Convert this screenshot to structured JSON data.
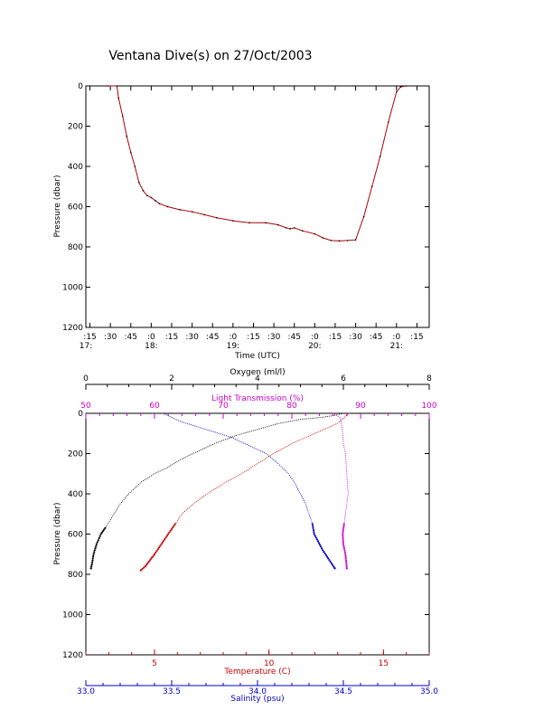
{
  "title": "Ventana Dive(s) on 27/Oct/2003",
  "chart_data": [
    {
      "type": "line",
      "title": "Ventana Dive(s) on 27/Oct/2003",
      "xlabel": "Time (UTC)",
      "ylabel": "Pressure (dbar)",
      "xlim": [
        17.2,
        21.4
      ],
      "ylim": [
        1200,
        0
      ],
      "x_ticks": [
        {
          "v": 17.25,
          "l": ":15"
        },
        {
          "v": 17.5,
          "l": ":30"
        },
        {
          "v": 17.75,
          "l": ":45"
        },
        {
          "v": 18.0,
          "l": ":0"
        },
        {
          "v": 18.25,
          "l": ":15"
        },
        {
          "v": 18.5,
          "l": ":30"
        },
        {
          "v": 18.75,
          "l": ":45"
        },
        {
          "v": 19.0,
          "l": ":0"
        },
        {
          "v": 19.25,
          "l": ":15"
        },
        {
          "v": 19.5,
          "l": ":30"
        },
        {
          "v": 19.75,
          "l": ":45"
        },
        {
          "v": 20.0,
          "l": ":0"
        },
        {
          "v": 20.25,
          "l": ":15"
        },
        {
          "v": 20.5,
          "l": ":30"
        },
        {
          "v": 20.75,
          "l": ":45"
        },
        {
          "v": 21.0,
          "l": ":0"
        },
        {
          "v": 21.25,
          "l": ":15"
        }
      ],
      "hour_labels": [
        {
          "v": 17.0,
          "l": "17:"
        },
        {
          "v": 18.0,
          "l": "18:"
        },
        {
          "v": 19.0,
          "l": "19:"
        },
        {
          "v": 20.0,
          "l": "20:"
        },
        {
          "v": 21.0,
          "l": "21:"
        }
      ],
      "y_ticks": [
        0,
        200,
        400,
        600,
        800,
        1000,
        1200
      ],
      "color": "#b00000",
      "series": [
        {
          "x": [
            17.47,
            17.58,
            17.6,
            17.65,
            17.7,
            17.75,
            17.8,
            17.85,
            17.9,
            17.95,
            18.0,
            18.05,
            18.1,
            18.2,
            18.35,
            18.5,
            18.65,
            18.8,
            19.0,
            19.2,
            19.4,
            19.55,
            19.65,
            19.7,
            19.75,
            19.85,
            20.0,
            20.1,
            20.2,
            20.3,
            20.4,
            20.5,
            20.6,
            20.7,
            20.8,
            20.9,
            21.0,
            21.05,
            21.12
          ],
          "y": [
            0,
            0,
            60,
            150,
            250,
            330,
            400,
            480,
            520,
            545,
            555,
            570,
            585,
            600,
            615,
            625,
            640,
            655,
            670,
            680,
            680,
            690,
            705,
            710,
            705,
            720,
            735,
            755,
            768,
            770,
            768,
            765,
            650,
            500,
            350,
            180,
            30,
            5,
            0
          ]
        }
      ]
    },
    {
      "type": "scatter",
      "ylabel": "Pressure (dbar)",
      "ylim": [
        1200,
        0
      ],
      "y_ticks": [
        0,
        200,
        400,
        600,
        800,
        1000,
        1200
      ],
      "axes": {
        "oxygen": {
          "label": "Oxygen (ml/l)",
          "range": [
            0,
            8
          ],
          "ticks": [
            0,
            2,
            4,
            6,
            8
          ],
          "color": "#000000",
          "position": "top"
        },
        "light": {
          "label": "Light Transmission (%)",
          "range": [
            50,
            100
          ],
          "ticks": [
            50,
            60,
            70,
            80,
            90,
            100
          ],
          "color": "#cc00cc",
          "position": "top"
        },
        "temperature": {
          "label": "Temperature (C)",
          "range": [
            2,
            17
          ],
          "ticks": [
            5,
            10,
            15
          ],
          "color": "#cc0000",
          "position": "bottom"
        },
        "salinity": {
          "label": "Salinity (psu)",
          "range": [
            33.0,
            35.0
          ],
          "ticks": [
            "33.0",
            "33.5",
            "34.0",
            "34.5",
            "35.0"
          ],
          "color": "#0000cc",
          "position": "bottom"
        }
      },
      "series": [
        {
          "name": "Oxygen (ml/l)",
          "axis": "oxygen",
          "color": "#000000",
          "x": [
            6.0,
            5.8,
            5.5,
            5.0,
            4.5,
            4.0,
            3.5,
            3.0,
            2.6,
            2.2,
            1.9,
            1.6,
            1.3,
            1.0,
            0.8,
            0.6,
            0.45,
            0.35,
            0.25,
            0.18,
            0.15,
            0.12
          ],
          "y": [
            0,
            10,
            20,
            30,
            50,
            80,
            110,
            150,
            190,
            230,
            270,
            300,
            340,
            400,
            450,
            520,
            570,
            600,
            650,
            700,
            740,
            770
          ]
        },
        {
          "name": "Light Transmission (%)",
          "axis": "light",
          "color": "#cc00cc",
          "x": [
            86.0,
            87.0,
            87.2,
            87.4,
            87.5,
            87.8,
            87.9,
            88.0,
            88.1,
            88.2,
            88.0,
            87.8,
            87.6,
            87.4,
            87.5,
            87.8,
            88.0
          ],
          "y": [
            0,
            20,
            50,
            100,
            150,
            200,
            250,
            300,
            350,
            400,
            450,
            500,
            550,
            600,
            650,
            700,
            770
          ]
        },
        {
          "name": "Temperature (C)",
          "axis": "temperature",
          "color": "#cc0000",
          "x": [
            13.5,
            13.0,
            12.4,
            11.8,
            11.0,
            10.2,
            9.5,
            8.8,
            8.0,
            7.3,
            6.7,
            6.2,
            5.9,
            5.6,
            5.3,
            5.0,
            4.8,
            4.6,
            4.4
          ],
          "y": [
            0,
            50,
            80,
            110,
            150,
            200,
            250,
            300,
            350,
            400,
            450,
            500,
            550,
            600,
            650,
            700,
            730,
            760,
            780
          ]
        },
        {
          "name": "Salinity (psu)",
          "axis": "salinity",
          "color": "#0000cc",
          "x": [
            33.45,
            33.55,
            33.7,
            33.85,
            33.95,
            34.05,
            34.12,
            34.18,
            34.22,
            34.25,
            34.28,
            34.3,
            34.32,
            34.33,
            34.38,
            34.45
          ],
          "y": [
            0,
            40,
            80,
            120,
            160,
            200,
            250,
            300,
            350,
            400,
            450,
            500,
            550,
            600,
            680,
            770
          ]
        }
      ]
    }
  ]
}
